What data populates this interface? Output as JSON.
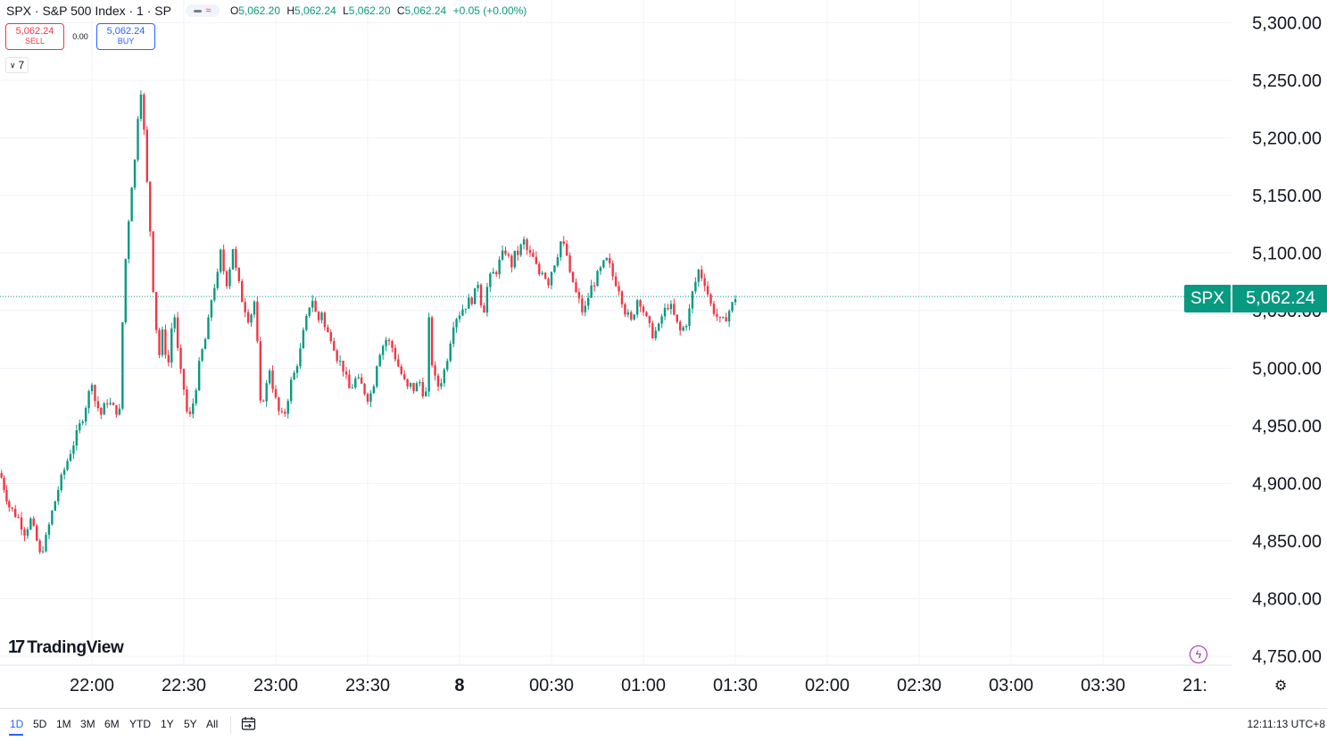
{
  "header": {
    "symbol_title": "SPX · S&P 500 Index · 1 · SP",
    "ohlc": [
      {
        "key": "O",
        "value": "5,062.20"
      },
      {
        "key": "H",
        "value": "5,062.24"
      },
      {
        "key": "L",
        "value": "5,062.20"
      },
      {
        "key": "C",
        "value": "5,062.24"
      }
    ],
    "change": "+0.05 (+0.00%)"
  },
  "trade": {
    "sell_price": "5,062.24",
    "sell_label": "SELL",
    "spread": "0.00",
    "buy_price": "5,062.24",
    "buy_label": "BUY"
  },
  "indicators_count": "7",
  "logo_text": "TradingView",
  "last_price": {
    "symbol": "SPX",
    "value": "5,062.24"
  },
  "toolbar": {
    "ranges": [
      "1D",
      "5D",
      "1M",
      "3M",
      "6M",
      "YTD",
      "1Y",
      "5Y",
      "All"
    ],
    "active_range": "1D",
    "clock": "12:11:13 UTC+8"
  },
  "colors": {
    "up": "#089981",
    "down": "#f23645",
    "grid": "#f0f3fa",
    "accent": "#2962ff"
  },
  "icons": [
    "chevron-down-icon",
    "bolt-icon",
    "gear-icon",
    "calendar-goto-icon",
    "tradingview-logo-icon"
  ],
  "chart_data": {
    "type": "candlestick",
    "ylim": [
      4740,
      5310
    ],
    "y_ticks": [
      5300,
      5250,
      5200,
      5150,
      5100,
      5050,
      5000,
      4950,
      4900,
      4850,
      4800,
      4750
    ],
    "y_tick_labels": [
      "5,300.00",
      "5,250.00",
      "5,200.00",
      "5,150.00",
      "5,100.00",
      "5,050.00",
      "5,000.00",
      "4,950.00",
      "4,900.00",
      "4,850.00",
      "4,800.00",
      "4,750.00"
    ],
    "x_ticks": [
      {
        "label": "22:00",
        "minute": 0
      },
      {
        "label": "22:30",
        "minute": 30
      },
      {
        "label": "23:00",
        "minute": 60
      },
      {
        "label": "23:30",
        "minute": 90
      },
      {
        "label": "8",
        "minute": 120,
        "bold": true
      },
      {
        "label": "00:30",
        "minute": 150
      },
      {
        "label": "01:00",
        "minute": 180
      },
      {
        "label": "01:30",
        "minute": 210
      },
      {
        "label": "02:00",
        "minute": 240
      },
      {
        "label": "02:30",
        "minute": 270
      },
      {
        "label": "03:00",
        "minute": 300
      },
      {
        "label": "03:30",
        "minute": 330
      },
      {
        "label": "21:",
        "minute": 360
      }
    ],
    "last_price": 5062.24,
    "close_path": [
      [
        -29.5,
        4905
      ],
      [
        -27,
        4880
      ],
      [
        -24,
        4870
      ],
      [
        -22,
        4858
      ],
      [
        -20,
        4868
      ],
      [
        -18,
        4850
      ],
      [
        -17,
        4838
      ],
      [
        -15,
        4852
      ],
      [
        -13,
        4875
      ],
      [
        -11,
        4895
      ],
      [
        -9,
        4912
      ],
      [
        -7,
        4928
      ],
      [
        -5,
        4942
      ],
      [
        -3,
        4958
      ],
      [
        -1,
        4978
      ],
      [
        0,
        4990
      ],
      [
        1,
        4972
      ],
      [
        3,
        4960
      ],
      [
        5,
        4972
      ],
      [
        7,
        4965
      ],
      [
        9,
        4962
      ],
      [
        10,
        5040
      ],
      [
        11,
        5095
      ],
      [
        12,
        5130
      ],
      [
        13,
        5160
      ],
      [
        14,
        5180
      ],
      [
        15,
        5220
      ],
      [
        16,
        5242
      ],
      [
        17,
        5205
      ],
      [
        18,
        5160
      ],
      [
        19,
        5120
      ],
      [
        20,
        5070
      ],
      [
        21,
        5035
      ],
      [
        22,
        5012
      ],
      [
        23,
        5030
      ],
      [
        24,
        5015
      ],
      [
        25,
        5005
      ],
      [
        26,
        5035
      ],
      [
        27,
        5045
      ],
      [
        28,
        5015
      ],
      [
        29,
        4995
      ],
      [
        30,
        4982
      ],
      [
        31,
        4962
      ],
      [
        32,
        4958
      ],
      [
        33,
        4970
      ],
      [
        34,
        4985
      ],
      [
        35,
        5002
      ],
      [
        36,
        5015
      ],
      [
        37,
        5025
      ],
      [
        38,
        5040
      ],
      [
        39,
        5060
      ],
      [
        40,
        5072
      ],
      [
        41,
        5080
      ],
      [
        42,
        5100
      ],
      [
        43,
        5085
      ],
      [
        44,
        5075
      ],
      [
        45,
        5088
      ],
      [
        46,
        5105
      ],
      [
        47,
        5085
      ],
      [
        48,
        5072
      ],
      [
        49,
        5060
      ],
      [
        50,
        5052
      ],
      [
        51,
        5044
      ],
      [
        52,
        5048
      ],
      [
        53,
        5058
      ],
      [
        54,
        5020
      ],
      [
        55,
        4968
      ],
      [
        56,
        4975
      ],
      [
        57,
        4985
      ],
      [
        58,
        5000
      ],
      [
        59,
        4985
      ],
      [
        60,
        4972
      ],
      [
        61,
        4962
      ],
      [
        62,
        4958
      ],
      [
        63,
        4962
      ],
      [
        64,
        4975
      ],
      [
        65,
        4988
      ],
      [
        66,
        4995
      ],
      [
        67,
        5005
      ],
      [
        68,
        5015
      ],
      [
        69,
        5030
      ],
      [
        70,
        5042
      ],
      [
        71,
        5055
      ],
      [
        72,
        5060
      ],
      [
        73,
        5048
      ],
      [
        74,
        5042
      ],
      [
        75,
        5050
      ],
      [
        76,
        5035
      ],
      [
        77,
        5030
      ],
      [
        78,
        5028
      ],
      [
        79,
        5020
      ],
      [
        80,
        5010
      ],
      [
        81,
        5005
      ],
      [
        82,
        5000
      ],
      [
        83,
        4990
      ],
      [
        84,
        4982
      ],
      [
        85,
        4985
      ],
      [
        86,
        4990
      ],
      [
        87,
        4988
      ],
      [
        88,
        4985
      ],
      [
        89,
        4980
      ],
      [
        90,
        4975
      ],
      [
        91,
        4978
      ],
      [
        92,
        4988
      ],
      [
        93,
        5005
      ],
      [
        94,
        5015
      ],
      [
        95,
        5020
      ],
      [
        96,
        5025
      ],
      [
        97,
        5022
      ],
      [
        98,
        5018
      ],
      [
        99,
        5010
      ],
      [
        100,
        5002
      ],
      [
        101,
        4995
      ],
      [
        102,
        4988
      ],
      [
        103,
        4982
      ],
      [
        104,
        4985
      ],
      [
        105,
        4982
      ],
      [
        106,
        4985
      ],
      [
        107,
        4988
      ],
      [
        108,
        4980
      ],
      [
        109,
        4978
      ],
      [
        110,
        5040
      ],
      [
        111,
        5005
      ],
      [
        112,
        4990
      ],
      [
        113,
        4985
      ],
      [
        114,
        4990
      ],
      [
        115,
        4998
      ],
      [
        116,
        5010
      ],
      [
        117,
        5025
      ],
      [
        118,
        5040
      ],
      [
        119,
        5045
      ],
      [
        120,
        5048
      ],
      [
        121,
        5052
      ],
      [
        122,
        5055
      ],
      [
        123,
        5058
      ],
      [
        124,
        5060
      ],
      [
        125,
        5065
      ],
      [
        126,
        5075
      ],
      [
        127,
        5058
      ],
      [
        128,
        5052
      ],
      [
        129,
        5070
      ],
      [
        130,
        5078
      ],
      [
        131,
        5082
      ],
      [
        132,
        5085
      ],
      [
        133,
        5092
      ],
      [
        134,
        5098
      ],
      [
        135,
        5102
      ],
      [
        136,
        5095
      ],
      [
        137,
        5090
      ],
      [
        138,
        5098
      ],
      [
        139,
        5100
      ],
      [
        140,
        5105
      ],
      [
        141,
        5110
      ],
      [
        142,
        5102
      ],
      [
        143,
        5098
      ],
      [
        144,
        5095
      ],
      [
        145,
        5088
      ],
      [
        146,
        5082
      ],
      [
        147,
        5086
      ],
      [
        148,
        5080
      ],
      [
        149,
        5075
      ],
      [
        150,
        5085
      ],
      [
        151,
        5092
      ],
      [
        152,
        5100
      ],
      [
        153,
        5110
      ],
      [
        154,
        5105
      ],
      [
        155,
        5098
      ],
      [
        156,
        5080
      ],
      [
        157,
        5075
      ],
      [
        158,
        5065
      ],
      [
        159,
        5058
      ],
      [
        160,
        5050
      ],
      [
        161,
        5052
      ],
      [
        162,
        5062
      ],
      [
        163,
        5070
      ],
      [
        164,
        5075
      ],
      [
        165,
        5080
      ],
      [
        166,
        5085
      ],
      [
        167,
        5090
      ],
      [
        168,
        5093
      ],
      [
        169,
        5088
      ],
      [
        170,
        5080
      ],
      [
        171,
        5075
      ],
      [
        172,
        5070
      ],
      [
        173,
        5060
      ],
      [
        174,
        5050
      ],
      [
        175,
        5045
      ],
      [
        176,
        5040
      ],
      [
        177,
        5050
      ],
      [
        178,
        5060
      ],
      [
        179,
        5058
      ],
      [
        180,
        5050
      ],
      [
        181,
        5042
      ],
      [
        182,
        5035
      ],
      [
        183,
        5030
      ],
      [
        184,
        5032
      ],
      [
        185,
        5035
      ],
      [
        186,
        5045
      ],
      [
        187,
        5050
      ],
      [
        188,
        5055
      ],
      [
        189,
        5052
      ],
      [
        190,
        5045
      ],
      [
        191,
        5038
      ],
      [
        192,
        5032
      ],
      [
        193,
        5035
      ],
      [
        194,
        5040
      ],
      [
        195,
        5050
      ],
      [
        196,
        5065
      ],
      [
        197,
        5075
      ],
      [
        198,
        5085
      ],
      [
        199,
        5080
      ],
      [
        200,
        5075
      ],
      [
        201,
        5065
      ],
      [
        202,
        5055
      ],
      [
        203,
        5050
      ],
      [
        204,
        5045
      ],
      [
        205,
        5040
      ],
      [
        206,
        5040
      ],
      [
        207,
        5045
      ],
      [
        208,
        5050
      ],
      [
        209,
        5055
      ],
      [
        210,
        5062
      ]
    ]
  }
}
